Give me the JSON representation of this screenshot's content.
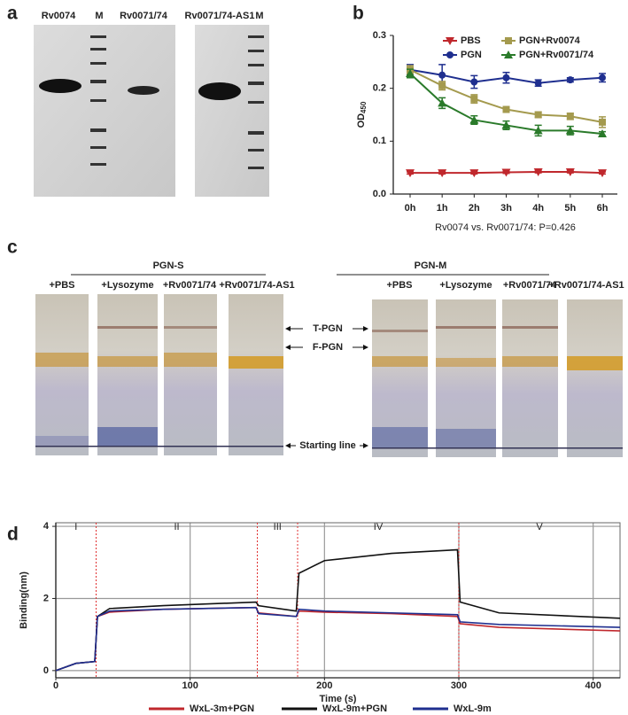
{
  "panel_labels": [
    "a",
    "b",
    "c",
    "d"
  ],
  "gel": {
    "lanes": [
      "Rv0074",
      "M",
      "Rv0071/74",
      "Rv0071/74-AS1",
      "M"
    ]
  },
  "strips": {
    "groups": [
      "PGN-S",
      "PGN-M"
    ],
    "lanes": [
      "+PBS",
      "+Lysozyme",
      "+Rv0071/74",
      "+Rv0071/74-AS1",
      "+PBS",
      "+Lysozyme",
      "+Rv0071/74",
      "+Rv0071/74-AS1"
    ],
    "markers": [
      "T-PGN",
      "F-PGN",
      "Starting line"
    ]
  },
  "chart_data": [
    {
      "type": "line",
      "categories": [
        "0h",
        "1h",
        "2h",
        "3h",
        "4h",
        "5h",
        "6h"
      ],
      "y_label": "OD",
      "y_label_sub": "450",
      "note": "Rv0074 vs. Rv0071/74: P=0.426",
      "ylim": [
        0,
        0.3
      ],
      "yticks": [
        {
          "value": 0,
          "label": "0.0"
        },
        0.1,
        0.2,
        0.3
      ],
      "legend": "top",
      "series": [
        {
          "name": "PBS",
          "color": "#c0282d",
          "marker": "triangle-down",
          "values": [
            0.04,
            0.04,
            0.04,
            0.041,
            0.042,
            0.042,
            0.04
          ],
          "errors": [
            0.002,
            0.002,
            0.002,
            0.002,
            0.002,
            0.002,
            0.002
          ]
        },
        {
          "name": "PGN",
          "color": "#1f2f8f",
          "marker": "circle",
          "values": [
            0.235,
            0.225,
            0.212,
            0.22,
            0.21,
            0.216,
            0.22
          ],
          "errors": [
            0.01,
            0.02,
            0.012,
            0.01,
            0.006,
            0.004,
            0.008
          ]
        },
        {
          "name": "PGN+Rv0074",
          "color": "#a49a4e",
          "marker": "square",
          "values": [
            0.235,
            0.205,
            0.18,
            0.16,
            0.15,
            0.147,
            0.136
          ],
          "errors": [
            0.008,
            0.008,
            0.008,
            0.005,
            0.005,
            0.006,
            0.01
          ]
        },
        {
          "name": "PGN+Rv0071/74",
          "color": "#2a7a2a",
          "marker": "triangle",
          "values": [
            0.228,
            0.172,
            0.14,
            0.13,
            0.12,
            0.12,
            0.114
          ],
          "errors": [
            0.008,
            0.01,
            0.008,
            0.008,
            0.01,
            0.008,
            0.004
          ]
        }
      ]
    },
    {
      "type": "line",
      "x": [
        0,
        15,
        29,
        31,
        40,
        80,
        149,
        151,
        179,
        181,
        200,
        250,
        299,
        301,
        330,
        420
      ],
      "x_label": "Time (s)",
      "y_label": "Binding(nm)",
      "xlim": [
        0,
        420
      ],
      "xticks": [
        0,
        100,
        200,
        300,
        400
      ],
      "ylim": [
        -0.2,
        4.1
      ],
      "yticks": [
        0,
        2,
        4
      ],
      "grid": true,
      "legend": "bottom",
      "phases": [
        "I",
        "II",
        "III",
        "IV",
        "V"
      ],
      "phase_boundaries": [
        30,
        150,
        180,
        300
      ],
      "boundary_color": "#e03030",
      "series": [
        {
          "name": "WxL-3m+PGN",
          "color": "#c0282d",
          "values": [
            0,
            0.2,
            0.25,
            1.5,
            1.62,
            1.7,
            1.75,
            1.6,
            1.5,
            1.65,
            1.62,
            1.58,
            1.5,
            1.3,
            1.2,
            1.1
          ]
        },
        {
          "name": "WxL-9m+PGN",
          "color": "#111111",
          "values": [
            0,
            0.2,
            0.25,
            1.5,
            1.72,
            1.8,
            1.9,
            1.8,
            1.65,
            2.7,
            3.05,
            3.25,
            3.35,
            1.9,
            1.6,
            1.45
          ]
        },
        {
          "name": "WxL-9m",
          "color": "#1f2f8f",
          "values": [
            0,
            0.2,
            0.25,
            1.5,
            1.65,
            1.7,
            1.75,
            1.58,
            1.5,
            1.7,
            1.65,
            1.6,
            1.55,
            1.35,
            1.28,
            1.2
          ]
        }
      ]
    }
  ]
}
